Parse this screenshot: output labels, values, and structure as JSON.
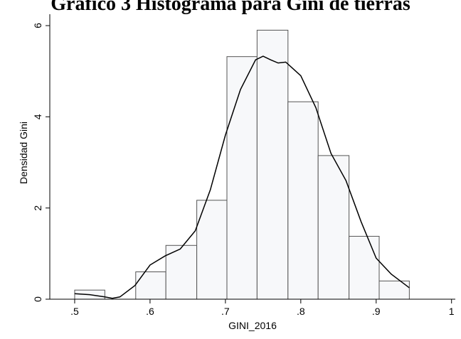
{
  "chart_data": {
    "type": "histogram",
    "title": "Gráfico 3 Histograma para Gini de tierras",
    "x_label": "GINI_2016",
    "y_label": "Densidad Gini",
    "bins": [
      0.5,
      0.54,
      0.581,
      0.621,
      0.662,
      0.702,
      0.742,
      0.783,
      0.823,
      0.864,
      0.904,
      0.944
    ],
    "counts": [
      0.2,
      0,
      0.6,
      1.18,
      2.17,
      5.32,
      5.9,
      4.33,
      3.15,
      1.38,
      0.4
    ],
    "color": "#f7f8fa",
    "edge_color": "#555555",
    "density": {
      "color": "#000000",
      "x": [
        0.5,
        0.52,
        0.54,
        0.55,
        0.56,
        0.58,
        0.6,
        0.62,
        0.64,
        0.66,
        0.68,
        0.7,
        0.72,
        0.74,
        0.75,
        0.76,
        0.77,
        0.78,
        0.79,
        0.8,
        0.82,
        0.84,
        0.86,
        0.88,
        0.9,
        0.92,
        0.944
      ],
      "values": [
        0.12,
        0.1,
        0.05,
        0.02,
        0.05,
        0.3,
        0.75,
        0.95,
        1.1,
        1.5,
        2.4,
        3.6,
        4.6,
        5.25,
        5.33,
        5.25,
        5.18,
        5.2,
        5.05,
        4.9,
        4.2,
        3.2,
        2.6,
        1.7,
        0.9,
        0.55,
        0.25
      ]
    },
    "xlim": [
      0.467,
      1.005
    ],
    "ylim": [
      0,
      6.25
    ],
    "xticks": [
      {
        "value": 0.5,
        "label": ".5"
      },
      {
        "value": 0.6,
        "label": ".6"
      },
      {
        "value": 0.7,
        "label": ".7"
      },
      {
        "value": 0.8,
        "label": ".8"
      },
      {
        "value": 0.9,
        "label": ".9"
      },
      1
    ],
    "yticks": [
      0,
      2,
      4,
      6
    ]
  }
}
